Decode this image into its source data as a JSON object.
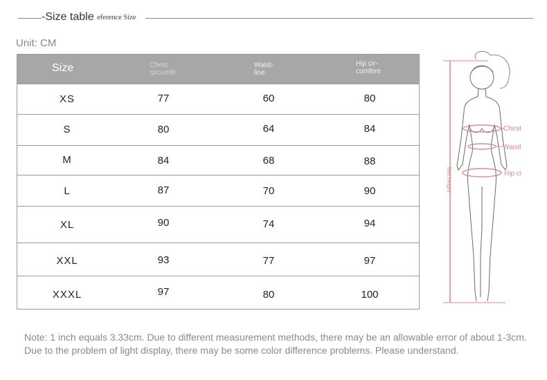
{
  "header": {
    "title": "-Size table",
    "subtitle": "eference Size",
    "unit": "Unit: CM"
  },
  "table": {
    "columns": {
      "size": "Size",
      "chest": [
        "Chest",
        "circumfe"
      ],
      "waist": [
        "Waist-",
        "line"
      ],
      "hip": [
        "Hip cir-",
        "cumfere"
      ]
    },
    "rows": [
      {
        "size": "XS",
        "chest": "77",
        "waist": "60",
        "hip": "80"
      },
      {
        "size": "S",
        "chest": "80",
        "waist": "64",
        "hip": "84"
      },
      {
        "size": "M",
        "chest": "84",
        "waist": "68",
        "hip": "88"
      },
      {
        "size": "L",
        "chest": "87",
        "waist": "70",
        "hip": "90"
      },
      {
        "size": "XL",
        "chest": "90",
        "waist": "74",
        "hip": "94"
      },
      {
        "size": "XXL",
        "chest": "93",
        "waist": "77",
        "hip": "97"
      },
      {
        "size": "XXXL",
        "chest": "97",
        "waist": "80",
        "hip": "100"
      }
    ]
  },
  "figure": {
    "labels": {
      "chest": "Chest",
      "waist": "Waistl",
      "hip": "Hip ci",
      "height": "Net height"
    },
    "accent_color": "#d98a8a"
  },
  "note": "Note: 1 inch equals 3.33cm. Due to different measurement methods, there may be an allowable error of about 1-3cm. Due to the problem of light display, there may be some color difference problems. Please understand."
}
